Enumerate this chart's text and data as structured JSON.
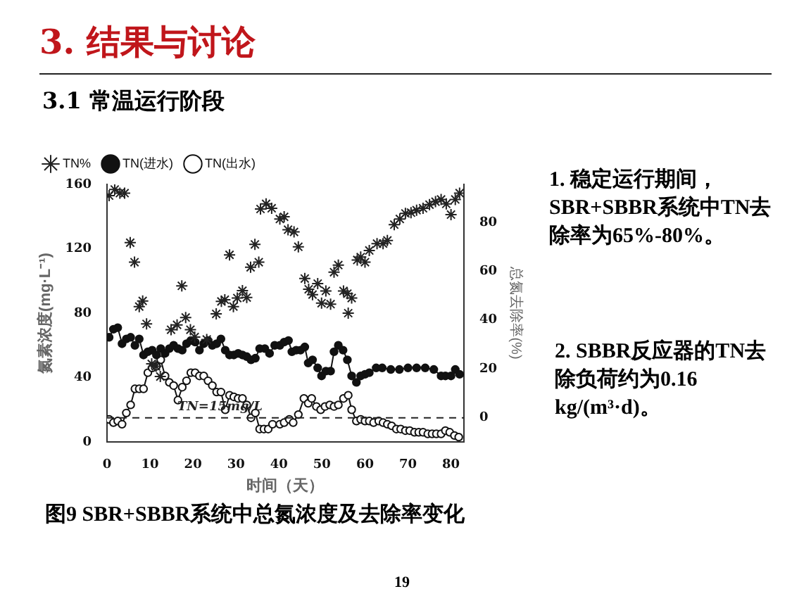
{
  "chart_data": {
    "type": "line",
    "title": "3. 结果与讨论",
    "subtitle": "3.1 常温运行阶段",
    "xlabel": "时间（天）",
    "ylabel": "氮素浓度(mg·L⁻¹)",
    "y2label": "总氮去除率(%)",
    "xlim": [
      0,
      83
    ],
    "xticks": [
      0,
      10,
      20,
      30,
      40,
      50,
      60,
      70,
      80
    ],
    "ylim": [
      0,
      160
    ],
    "yticks": [
      0,
      40,
      80,
      120,
      160
    ],
    "y2lim": [
      -10,
      95.6
    ],
    "y2ticks": [
      0,
      20,
      40,
      60,
      80
    ],
    "grid": false,
    "legend": "top left",
    "line_style": "solid",
    "series": [
      {
        "name": "TN%",
        "type": "scatter",
        "axis": "y2",
        "marker": "cross",
        "color": "#222222",
        "x": [
          0.5,
          1.8,
          3,
          4.1,
          5.4,
          6.4,
          7.5,
          8.3,
          9.2,
          10.4,
          11.4,
          12.4,
          14.9,
          16.3,
          17.4,
          18.3,
          19.4,
          20.4,
          23.2,
          25.4,
          26.6,
          27.4,
          28.5,
          29.4,
          30.3,
          31.5,
          32.5,
          33.4,
          34.4,
          35.3,
          35.7,
          37,
          38.3,
          40.2,
          41.2,
          42.1,
          43.5,
          44.5,
          46,
          46.9,
          47.8,
          49,
          49.9,
          50.9,
          52,
          52.8,
          53.8,
          55,
          55.9,
          56.1,
          56.9,
          58.2,
          59,
          60,
          61,
          62.8,
          64.2,
          65.2,
          66.8,
          68.1,
          69.4,
          70.7,
          72,
          73.5,
          75,
          76.4,
          77.7,
          78.9,
          80,
          81,
          82
        ],
        "values": [
          91,
          93.5,
          92,
          92,
          71.7,
          63.7,
          45.5,
          47.8,
          38.4,
          22,
          21,
          16.8,
          36,
          38,
          54,
          41,
          36,
          33,
          32,
          42.5,
          47.6,
          48.3,
          66.7,
          45.5,
          49,
          52,
          49.2,
          61.6,
          71,
          63.7,
          85.5,
          87.6,
          85.8,
          81.4,
          82.3,
          77,
          76.1,
          70,
          57,
          52.6,
          50.4,
          54.9,
          46.9,
          51.9,
          46.5,
          59.6,
          62.5,
          51.9,
          50.8,
          42.8,
          49,
          64.6,
          65.8,
          63.7,
          68.5,
          71.3,
          71.3,
          72.6,
          79.1,
          81.4,
          83.7,
          84,
          85,
          85.8,
          87.3,
          88.5,
          89.4,
          87.6,
          83.2,
          89.4,
          92
        ]
      },
      {
        "name": "TN(进水)",
        "axis": "y",
        "marker": "circle",
        "color": "#111111",
        "x": [
          0.5,
          1.5,
          2.5,
          3.5,
          4.5,
          5.5,
          6.5,
          7.5,
          8.5,
          9.5,
          10.5,
          11.5,
          12.5,
          13.5,
          14.5,
          15.5,
          16.5,
          17.5,
          18.5,
          19.5,
          20.5,
          21.5,
          22.5,
          23.5,
          24.5,
          25.5,
          26.5,
          27.5,
          28.5,
          29.5,
          30.5,
          31.5,
          32.5,
          33.5,
          34.5,
          35.5,
          36.7,
          37.8,
          39,
          40.2,
          41.2,
          42.2,
          43,
          44,
          45,
          46,
          46.8,
          47.8,
          49,
          49.9,
          50.9,
          52,
          52.8,
          53.8,
          54.9,
          55.9,
          56.9,
          58,
          59,
          60,
          61,
          62.6,
          64,
          66,
          68,
          70,
          72,
          74,
          76,
          77.7,
          78.7,
          80,
          81,
          82
        ],
        "values": [
          65,
          70,
          71,
          61,
          64,
          65,
          60,
          64,
          54,
          56,
          57,
          54,
          58,
          55,
          58,
          60,
          58,
          57,
          61,
          63,
          62,
          57,
          61,
          63,
          60,
          61,
          64,
          57,
          54,
          54,
          55,
          54,
          53,
          51,
          52,
          58,
          58,
          55,
          60,
          60,
          62,
          63,
          56,
          57,
          57,
          59,
          49,
          51,
          46,
          41,
          44,
          44,
          56,
          60,
          57,
          51,
          41,
          37,
          41,
          42,
          43,
          46,
          46,
          45,
          45,
          46,
          46,
          46,
          45,
          41,
          41,
          41,
          45,
          42
        ]
      },
      {
        "name": "TN(出水)",
        "axis": "y",
        "marker": "circle",
        "color": "#111111",
        "x": [
          0.5,
          1.5,
          2.5,
          3.5,
          4.5,
          5.5,
          6.5,
          7.5,
          8.5,
          9.5,
          10.5,
          11.5,
          12.5,
          13.5,
          14.5,
          15.5,
          16.5,
          17.5,
          18.5,
          19.5,
          20.5,
          21.5,
          22.5,
          23.5,
          24.5,
          25.5,
          26.5,
          27.5,
          28.5,
          29.5,
          30.5,
          31.5,
          32.5,
          33.5,
          34.5,
          35.5,
          36.5,
          37.5,
          38.5,
          40.2,
          41.2,
          42.4,
          43.3,
          44.5,
          45.8,
          46.8,
          47.6,
          48.7,
          49.7,
          50.7,
          51.8,
          52.8,
          53.8,
          55,
          56.1,
          56.9,
          58,
          59,
          60,
          61,
          62,
          63.2,
          64.2,
          65.2,
          66.2,
          67.3,
          68.3,
          69.4,
          70.4,
          71.5,
          72.5,
          73.5,
          74.6,
          75.6,
          76.6,
          77.7,
          78.7,
          79.7,
          80.8,
          81.8
        ],
        "values": [
          14,
          12,
          13,
          11,
          18,
          23,
          33,
          33,
          33,
          43,
          46,
          47,
          51,
          41,
          37,
          35,
          26,
          34,
          38,
          43,
          43,
          41,
          41,
          38,
          35,
          31,
          31,
          20,
          29,
          28,
          27,
          27,
          23,
          15,
          18,
          8,
          8,
          8,
          11,
          11,
          12,
          14,
          12,
          17,
          27,
          24,
          27,
          22,
          20,
          22,
          23,
          22,
          23,
          27,
          29,
          20,
          13,
          14,
          13,
          13,
          12,
          13,
          12,
          11,
          10,
          8,
          8,
          7,
          7,
          6,
          6,
          6,
          5,
          5,
          5,
          5,
          7,
          6,
          4,
          3
        ]
      }
    ],
    "ref_lines": [
      {
        "axis": "y",
        "value": 15,
        "label": "TN=15mg/L",
        "line_style": "dashed",
        "color": "#222222"
      }
    ],
    "annotations": [
      "1. 稳定运行期间，SBR+SBBR系统中TN去除率为65%-80%。",
      "2. SBBR反应器的TN去除负荷约为0.16 kg/(m³·d)。",
      "图9 SBR+SBBR系统中总氮浓度及去除率变化",
      "19"
    ]
  }
}
